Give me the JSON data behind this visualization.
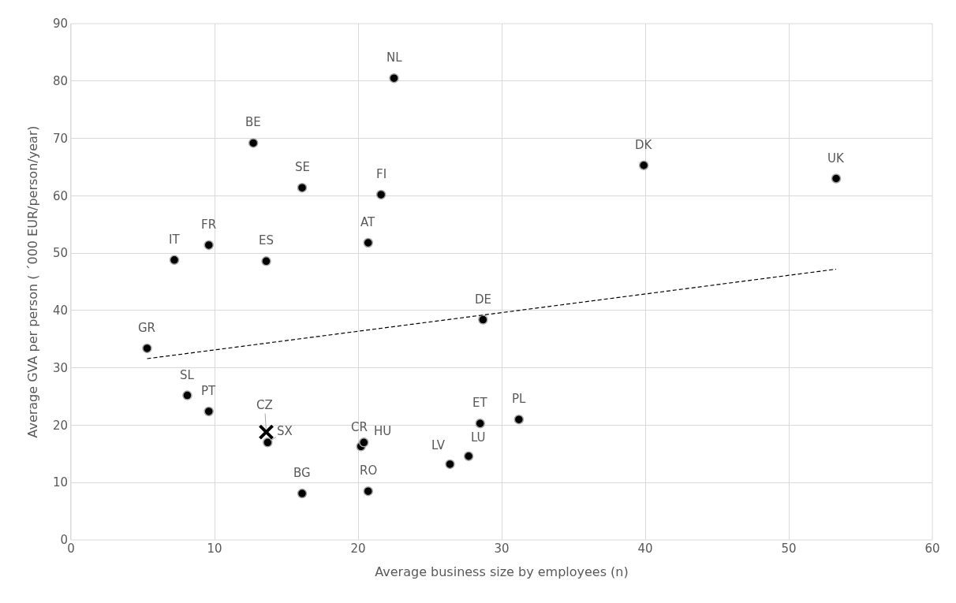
{
  "chart_data": {
    "type": "scatter",
    "xlabel": "Average business size by employees (n)",
    "ylabel": "Average GVA per person ( ´000 EUR/person/year)",
    "xlim": [
      0,
      60
    ],
    "xticks": [
      0,
      10,
      20,
      30,
      40,
      50,
      60
    ],
    "ylim": [
      0,
      90
    ],
    "yticks": [
      0,
      10,
      20,
      30,
      40,
      50,
      60,
      70,
      80,
      90
    ],
    "grid": true,
    "series": [
      {
        "color": "#000000",
        "marker": "circle",
        "x": [
          5.3,
          7.2,
          9.6,
          13.6,
          12.7,
          16.1,
          22.5,
          21.6,
          20.7,
          39.9,
          53.3,
          28.7,
          8.1,
          9.6,
          13.7,
          16.1,
          20.2,
          20.4,
          20.7,
          26.4,
          27.7,
          28.5,
          31.2
        ],
        "values": [
          33.4,
          48.8,
          51.4,
          48.6,
          69.2,
          61.4,
          80.5,
          60.2,
          51.8,
          65.3,
          63.0,
          38.4,
          25.2,
          22.4,
          17.0,
          8.1,
          16.3,
          17.0,
          8.5,
          13.2,
          14.6,
          20.3,
          21.0
        ]
      },
      {
        "color": "#000000",
        "marker": "cross",
        "x": [
          13.6
        ],
        "values": [
          18.8
        ]
      },
      {
        "type": "line",
        "color": "#000000",
        "line_style": "dashed",
        "marker": "none",
        "x": [
          5.3,
          53.3
        ],
        "values": [
          31.6,
          47.2
        ]
      }
    ],
    "annotations": [
      {
        "text": "GR",
        "x": 5.3,
        "y": 33.4
      },
      {
        "text": "IT",
        "x": 7.2,
        "y": 48.8
      },
      {
        "text": "FR",
        "x": 9.6,
        "y": 51.4
      },
      {
        "text": "ES",
        "x": 13.6,
        "y": 48.6
      },
      {
        "text": "BE",
        "x": 12.7,
        "y": 69.2
      },
      {
        "text": "SE",
        "x": 16.1,
        "y": 61.4
      },
      {
        "text": "NL",
        "x": 22.5,
        "y": 80.5
      },
      {
        "text": "FI",
        "x": 21.6,
        "y": 60.2
      },
      {
        "text": "AT",
        "x": 20.7,
        "y": 51.8
      },
      {
        "text": "DK",
        "x": 39.9,
        "y": 65.3
      },
      {
        "text": "UK",
        "x": 53.3,
        "y": 63.0
      },
      {
        "text": "DE",
        "x": 28.7,
        "y": 38.4
      },
      {
        "text": "SL",
        "x": 8.1,
        "y": 25.2
      },
      {
        "text": "PT",
        "x": 9.6,
        "y": 22.4
      },
      {
        "text": "SX",
        "x": 13.7,
        "y": 17.0
      },
      {
        "text": "BG",
        "x": 16.1,
        "y": 8.1
      },
      {
        "text": "CR",
        "x": 20.2,
        "y": 16.3
      },
      {
        "text": "HU",
        "x": 20.4,
        "y": 17.0
      },
      {
        "text": "RO",
        "x": 20.7,
        "y": 8.5
      },
      {
        "text": "LV",
        "x": 26.4,
        "y": 13.2
      },
      {
        "text": "LU",
        "x": 27.7,
        "y": 14.6
      },
      {
        "text": "ET",
        "x": 28.5,
        "y": 20.3
      },
      {
        "text": "PL",
        "x": 31.2,
        "y": 21.0
      },
      {
        "text": "CZ",
        "x": 13.6,
        "y": 18.8
      }
    ]
  }
}
